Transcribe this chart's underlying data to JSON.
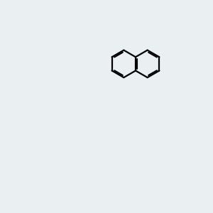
{
  "bg_color": "#eaeff1",
  "bond_color": "#000000",
  "N_color": "#0000ff",
  "S_color": "#cccc00",
  "O_color": "#ff0000",
  "H_color": "#808080",
  "C_color": "#000000",
  "lw": 1.5,
  "lw2": 2.5
}
